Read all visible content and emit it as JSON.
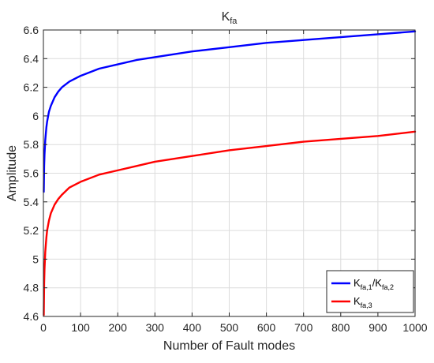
{
  "chart_data": {
    "type": "line",
    "title": {
      "main": "K",
      "sub": "fa"
    },
    "xlabel": "Number of Fault modes",
    "ylabel": "Amplitude",
    "xlim": [
      0,
      1000
    ],
    "ylim": [
      4.6,
      6.6
    ],
    "xticks": [
      0,
      100,
      200,
      300,
      400,
      500,
      600,
      700,
      800,
      900,
      1000
    ],
    "yticks": [
      4.6,
      4.8,
      5,
      5.2,
      5.4,
      5.6,
      5.8,
      6,
      6.2,
      6.4,
      6.6
    ],
    "xtick_labels": [
      "0",
      "100",
      "200",
      "300",
      "400",
      "500",
      "600",
      "700",
      "800",
      "900",
      "1000"
    ],
    "ytick_labels": [
      "4.6",
      "4.8",
      "5",
      "5.2",
      "5.4",
      "5.6",
      "5.8",
      "6",
      "6.2",
      "6.4",
      "6.6"
    ],
    "grid": true,
    "legend_position": "bottom-right",
    "series": [
      {
        "legend": [
          {
            "text": "K",
            "sub": "fa,1"
          },
          {
            "text": "/K",
            "sub": "fa,2"
          }
        ],
        "color": "#0000ff",
        "x": [
          1,
          2,
          3,
          5,
          8,
          10,
          15,
          20,
          30,
          40,
          50,
          70,
          100,
          150,
          200,
          250,
          300,
          400,
          500,
          600,
          700,
          800,
          900,
          1000
        ],
        "y": [
          5.47,
          5.65,
          5.73,
          5.83,
          5.92,
          5.96,
          6.03,
          6.07,
          6.13,
          6.17,
          6.2,
          6.24,
          6.28,
          6.33,
          6.36,
          6.39,
          6.41,
          6.45,
          6.48,
          6.51,
          6.53,
          6.55,
          6.57,
          6.59
        ]
      },
      {
        "legend": [
          {
            "text": "K",
            "sub": "fa,3"
          }
        ],
        "color": "#ff0000",
        "x": [
          1,
          2,
          3,
          5,
          8,
          10,
          15,
          20,
          30,
          40,
          50,
          70,
          100,
          150,
          200,
          250,
          300,
          400,
          500,
          600,
          700,
          800,
          900,
          1000
        ],
        "y": [
          4.61,
          4.83,
          4.93,
          5.05,
          5.15,
          5.2,
          5.27,
          5.32,
          5.38,
          5.42,
          5.45,
          5.5,
          5.54,
          5.59,
          5.62,
          5.65,
          5.68,
          5.72,
          5.76,
          5.79,
          5.82,
          5.84,
          5.86,
          5.89
        ]
      }
    ]
  }
}
